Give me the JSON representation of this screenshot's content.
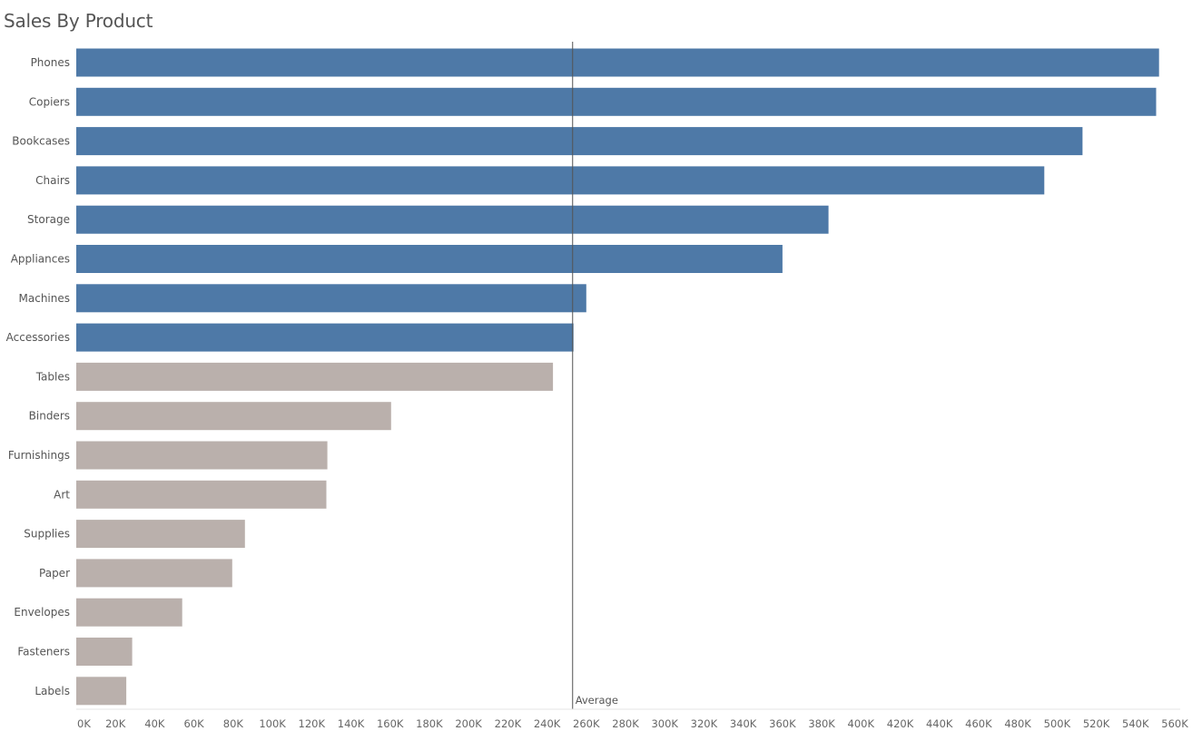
{
  "page": {
    "title": "Sales By Product"
  },
  "chart_data": {
    "type": "bar",
    "orientation": "horizontal",
    "title": "Sales By Product",
    "xlabel": "",
    "ylabel": "",
    "xlim": [
      0,
      560000
    ],
    "grid": false,
    "categories": [
      "Phones",
      "Copiers",
      "Bookcases",
      "Chairs",
      "Storage",
      "Appliances",
      "Machines",
      "Accessories",
      "Tables",
      "Binders",
      "Furnishings",
      "Art",
      "Supplies",
      "Paper",
      "Envelopes",
      "Fasteners",
      "Labels"
    ],
    "values": [
      552000,
      550500,
      513000,
      493500,
      383500,
      360000,
      260000,
      253500,
      243000,
      160500,
      128000,
      127500,
      86000,
      79500,
      54000,
      28500,
      25500
    ],
    "above_average": [
      true,
      true,
      true,
      true,
      true,
      true,
      true,
      true,
      false,
      false,
      false,
      false,
      false,
      false,
      false,
      false,
      false
    ],
    "colors": {
      "above_average": "#4e79a7",
      "below_average": "#bab0ac",
      "reference_line": "#555555"
    },
    "reference_line": {
      "label": "Average",
      "value": 253000
    },
    "x_ticks": [
      0,
      20000,
      40000,
      60000,
      80000,
      100000,
      120000,
      140000,
      160000,
      180000,
      200000,
      220000,
      240000,
      260000,
      280000,
      300000,
      320000,
      340000,
      360000,
      380000,
      400000,
      420000,
      440000,
      460000,
      480000,
      500000,
      520000,
      540000,
      560000
    ],
    "x_tick_labels": [
      "0K",
      "20K",
      "40K",
      "60K",
      "80K",
      "100K",
      "120K",
      "140K",
      "160K",
      "180K",
      "200K",
      "220K",
      "240K",
      "260K",
      "280K",
      "300K",
      "320K",
      "340K",
      "360K",
      "380K",
      "400K",
      "420K",
      "440K",
      "460K",
      "480K",
      "500K",
      "520K",
      "540K",
      "560K"
    ]
  }
}
